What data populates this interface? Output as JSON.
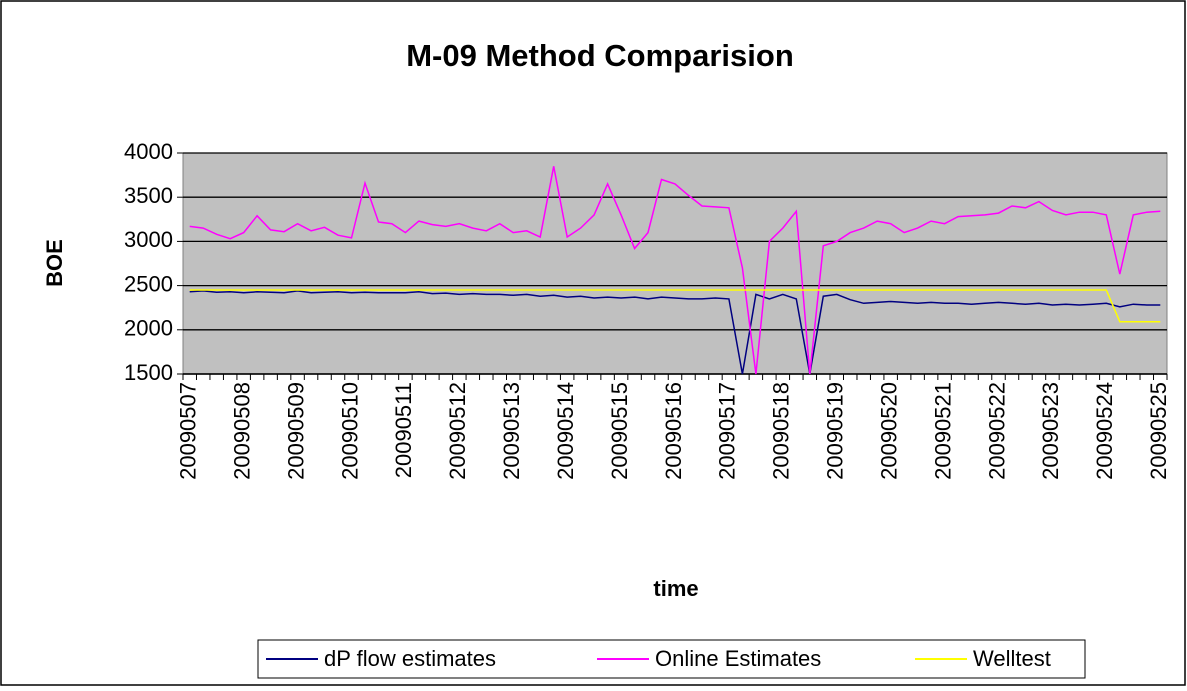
{
  "chart_data": {
    "type": "line",
    "title": "M-09 Method Comparision",
    "xlabel": "time",
    "ylabel": "BOE",
    "categories": [
      "20090507",
      null,
      null,
      null,
      "20090508",
      null,
      null,
      null,
      "20090509",
      null,
      null,
      null,
      "20090510",
      null,
      null,
      null,
      "20090511",
      null,
      null,
      null,
      "20090512",
      null,
      null,
      null,
      "20090513",
      null,
      null,
      null,
      "20090514",
      null,
      null,
      null,
      "20090515",
      null,
      null,
      null,
      "20090516",
      null,
      null,
      null,
      "20090517",
      null,
      null,
      null,
      "20090518",
      null,
      null,
      null,
      "20090519",
      null,
      null,
      null,
      "20090520",
      null,
      null,
      null,
      "20090521",
      null,
      null,
      null,
      "20090522",
      null,
      null,
      null,
      "20090523",
      null,
      null,
      null,
      "20090524",
      null,
      null,
      null,
      "20090525"
    ],
    "series": [
      {
        "name": "dP flow estimates",
        "color": "#000080",
        "values": [
          2430,
          2440,
          2425,
          2430,
          2420,
          2430,
          2425,
          2420,
          2440,
          2420,
          2425,
          2430,
          2420,
          2425,
          2420,
          2420,
          2420,
          2430,
          2410,
          2415,
          2400,
          2410,
          2400,
          2400,
          2390,
          2400,
          2380,
          2390,
          2370,
          2380,
          2360,
          2370,
          2360,
          2370,
          2350,
          2370,
          2360,
          2350,
          2350,
          2360,
          2350,
          1500,
          2400,
          2350,
          2400,
          2350,
          1500,
          2380,
          2400,
          2340,
          2300,
          2310,
          2320,
          2310,
          2300,
          2310,
          2300,
          2300,
          2290,
          2300,
          2310,
          2300,
          2290,
          2300,
          2280,
          2290,
          2280,
          2290,
          2300,
          2260,
          2290,
          2280,
          2280
        ]
      },
      {
        "name": "Online Estimates",
        "color": "#ff00ff",
        "values": [
          3170,
          3150,
          3080,
          3030,
          3100,
          3290,
          3130,
          3110,
          3200,
          3120,
          3160,
          3070,
          3040,
          3660,
          3220,
          3200,
          3100,
          3230,
          3190,
          3170,
          3200,
          3150,
          3120,
          3200,
          3100,
          3120,
          3050,
          3850,
          3050,
          3150,
          3300,
          3650,
          3300,
          2920,
          3100,
          3700,
          3650,
          3520,
          3400,
          3390,
          3380,
          2700,
          1500,
          3000,
          3150,
          3340,
          1500,
          2950,
          3000,
          3100,
          3150,
          3230,
          3200,
          3100,
          3150,
          3230,
          3200,
          3280,
          3290,
          3300,
          3320,
          3400,
          3380,
          3450,
          3350,
          3300,
          3330,
          3330,
          3300,
          2630,
          3300,
          3330,
          3340
        ]
      },
      {
        "name": "Welltest",
        "color": "#ffff00",
        "values": [
          2450,
          2450,
          2450,
          2450,
          2450,
          2450,
          2450,
          2450,
          2450,
          2450,
          2450,
          2450,
          2450,
          2450,
          2450,
          2450,
          2450,
          2450,
          2450,
          2450,
          2450,
          2450,
          2450,
          2450,
          2450,
          2450,
          2450,
          2450,
          2450,
          2450,
          2450,
          2450,
          2450,
          2450,
          2450,
          2450,
          2450,
          2450,
          2450,
          2450,
          2450,
          2450,
          2450,
          2450,
          2450,
          2450,
          2450,
          2450,
          2450,
          2450,
          2450,
          2450,
          2450,
          2450,
          2450,
          2450,
          2450,
          2450,
          2450,
          2450,
          2450,
          2450,
          2450,
          2450,
          2450,
          2450,
          2450,
          2450,
          2450,
          2090,
          2090,
          2090,
          2090
        ]
      }
    ],
    "ylim": [
      1500,
      4000
    ],
    "yticks": [
      1500,
      2000,
      2500,
      3000,
      3500,
      4000
    ],
    "grid": true,
    "legend": "bottom",
    "plot_background": "#c0c0c0"
  }
}
